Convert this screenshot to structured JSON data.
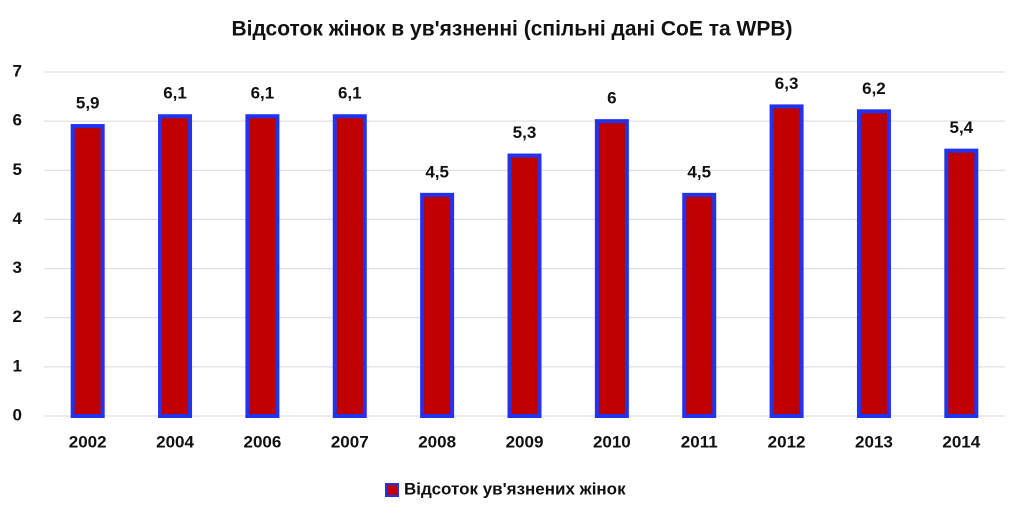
{
  "chart_data": {
    "type": "bar",
    "title": "Відсоток жінок в ув'язненні (спільні дані CoE та WPB)",
    "categories": [
      "2002",
      "2004",
      "2006",
      "2007",
      "2008",
      "2009",
      "2010",
      "2011",
      "2012",
      "2013",
      "2014"
    ],
    "series": [
      {
        "name": "Відсоток ув'язнених жінок",
        "color": "#c00000",
        "edgecolor": "#2233ee",
        "values": [
          5.9,
          6.1,
          6.1,
          6.1,
          4.5,
          5.3,
          6,
          4.5,
          6.3,
          6.2,
          5.4
        ],
        "value_labels": [
          "5,9",
          "6,1",
          "6,1",
          "6,1",
          "4,5",
          "5,3",
          "6",
          "4,5",
          "6,3",
          "6,2",
          "5,4"
        ]
      }
    ],
    "ylim": [
      0,
      7
    ],
    "yticks": [
      0,
      1,
      2,
      3,
      4,
      5,
      6,
      7
    ],
    "grid": true,
    "legend": "bottom"
  }
}
